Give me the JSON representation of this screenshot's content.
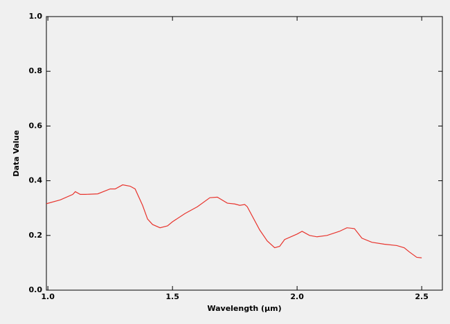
{
  "chart_data": {
    "type": "line",
    "xlabel": "Wavelength (µm)",
    "ylabel": "Data Value",
    "x": [
      0.994,
      1.05,
      1.1,
      1.11,
      1.13,
      1.15,
      1.2,
      1.25,
      1.27,
      1.3,
      1.33,
      1.35,
      1.38,
      1.4,
      1.42,
      1.45,
      1.48,
      1.5,
      1.55,
      1.6,
      1.65,
      1.68,
      1.72,
      1.75,
      1.77,
      1.79,
      1.8,
      1.85,
      1.88,
      1.91,
      1.93,
      1.95,
      2.0,
      2.02,
      2.05,
      2.08,
      2.12,
      2.17,
      2.2,
      2.23,
      2.26,
      2.3,
      2.35,
      2.4,
      2.43,
      2.45,
      2.48,
      2.5
    ],
    "series": [
      {
        "color": "#e8332c",
        "values": [
          0.316,
          0.33,
          0.35,
          0.36,
          0.35,
          0.35,
          0.352,
          0.37,
          0.37,
          0.385,
          0.38,
          0.37,
          0.31,
          0.26,
          0.24,
          0.228,
          0.235,
          0.25,
          0.28,
          0.305,
          0.338,
          0.34,
          0.318,
          0.315,
          0.31,
          0.313,
          0.305,
          0.22,
          0.18,
          0.155,
          0.16,
          0.185,
          0.205,
          0.215,
          0.2,
          0.195,
          0.2,
          0.215,
          0.228,
          0.225,
          0.19,
          0.175,
          0.168,
          0.163,
          0.155,
          0.14,
          0.12,
          0.118
        ]
      }
    ],
    "xlim": [
      0.994,
      2.583
    ],
    "ylim": [
      0,
      1
    ],
    "xticks": [
      {
        "value": 1,
        "label": "1.0"
      },
      1.5,
      {
        "value": 2,
        "label": "2.0"
      },
      2.5
    ],
    "yticks": [
      {
        "value": 0,
        "label": "0.0"
      },
      0.2,
      0.4,
      0.6,
      0.8,
      {
        "value": 1,
        "label": "1.0"
      }
    ]
  }
}
